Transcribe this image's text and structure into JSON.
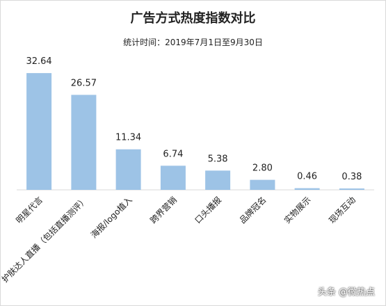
{
  "title": "广告方式热度指数对比",
  "subtitle": "统计时间：2019年7月1日至9月30日",
  "watermark": "头条 @微热点",
  "chart_data": {
    "type": "bar",
    "title": "广告方式热度指数对比",
    "subtitle": "统计时间：2019年7月1日至9月30日",
    "categories": [
      "明星代言",
      "护肤达人直播（包括直播测评）",
      "海报/logo植入",
      "跨界营销",
      "口头播报",
      "品牌冠名",
      "实物展示",
      "现场互动"
    ],
    "values": [
      32.64,
      26.57,
      11.34,
      6.74,
      5.38,
      2.8,
      0.46,
      0.38
    ],
    "value_labels": [
      "32.64",
      "26.57",
      "11.34",
      "6.74",
      "5.38",
      "2.80",
      "0.46",
      "0.38"
    ],
    "ylim": [
      0,
      35
    ],
    "grid": false,
    "legend": "none",
    "bar_color": "#9dc3e6",
    "axis_color": "#d9d9d9"
  }
}
